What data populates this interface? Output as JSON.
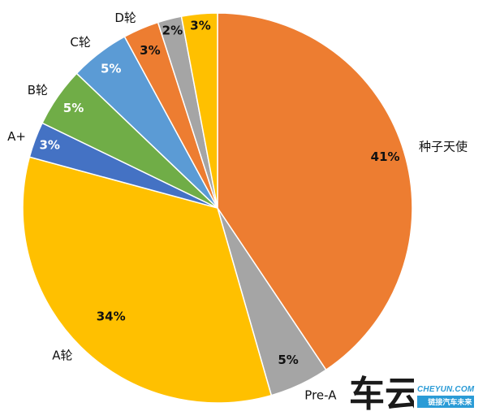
{
  "chart_data": {
    "type": "pie",
    "title": "",
    "slices": [
      {
        "label": "种子天使",
        "value": 41,
        "value_label": "41%",
        "color": "#ED7D31",
        "pct_color": "#111111"
      },
      {
        "label": "Pre-A",
        "value": 5,
        "value_label": "5%",
        "color": "#A5A5A5",
        "pct_color": "#111111"
      },
      {
        "label": "A轮",
        "value": 34,
        "value_label": "34%",
        "color": "#FFC000",
        "pct_color": "#111111"
      },
      {
        "label": "A+",
        "value": 3,
        "value_label": "3%",
        "color": "#4472C4",
        "pct_color": "#ffffff"
      },
      {
        "label": "B轮",
        "value": 5,
        "value_label": "5%",
        "color": "#70AD47",
        "pct_color": "#ffffff"
      },
      {
        "label": "C轮",
        "value": 5,
        "value_label": "5%",
        "color": "#5B9BD5",
        "pct_color": "#ffffff"
      },
      {
        "label": "D轮",
        "value": 3,
        "value_label": "3%",
        "color": "#ED7D31",
        "pct_color": "#111111"
      },
      {
        "label": "",
        "value": 2,
        "value_label": "2%",
        "color": "#A5A5A5",
        "pct_color": "#111111"
      },
      {
        "label": "",
        "value": 3,
        "value_label": "3%",
        "color": "#FFC000",
        "pct_color": "#111111"
      }
    ],
    "start": "12 o'clock",
    "direction": "clockwise"
  },
  "watermark": {
    "logo_text": "车云",
    "site": "CHEYUN.COM",
    "tagline": "链接汽车未来"
  }
}
